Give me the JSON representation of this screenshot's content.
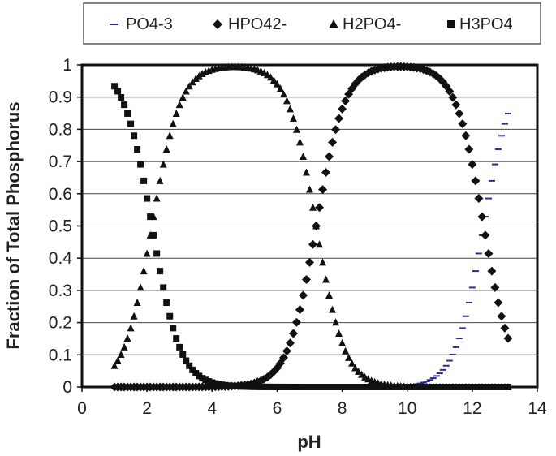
{
  "chart_data": {
    "type": "scatter",
    "title": "",
    "xlabel": "pH",
    "ylabel": "Fraction of Total Phosphorus",
    "xlim": [
      0,
      14
    ],
    "ylim": [
      0,
      1
    ],
    "x_ticks": [
      "0",
      "2",
      "4",
      "6",
      "8",
      "10",
      "12",
      "14"
    ],
    "y_ticks": [
      "0",
      "0.1",
      "0.2",
      "0.3",
      "0.4",
      "0.5",
      "0.6",
      "0.7",
      "0.8",
      "0.9",
      "1"
    ],
    "grid": "horizontal",
    "legend_position": "top",
    "pKa": [
      2.15,
      7.2,
      12.35
    ],
    "x_range": [
      1.0,
      13.1
    ],
    "x_step": 0.1,
    "series": [
      {
        "name": "PO4-3",
        "marker": "dash",
        "color": "#2b2b8f"
      },
      {
        "name": "HPO42-",
        "marker": "diamond",
        "color": "#111111"
      },
      {
        "name": "H2PO4-",
        "marker": "triangle",
        "color": "#111111"
      },
      {
        "name": "H3PO4",
        "marker": "square",
        "color": "#111111"
      }
    ]
  }
}
